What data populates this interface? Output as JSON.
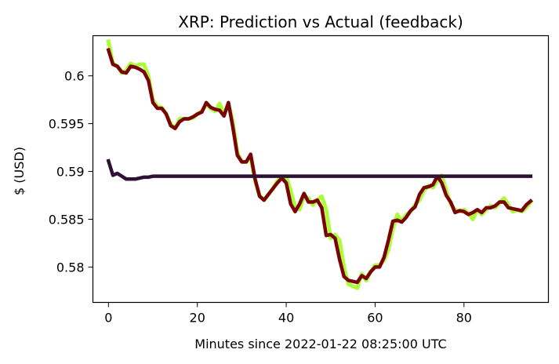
{
  "chart_data": {
    "type": "line",
    "title": "XRP: Prediction vs Actual (feedback)",
    "xlabel": "Minutes since 2022-01-22 08:25:00 UTC",
    "ylabel": "$ (USD)",
    "xlim": [
      -3.5,
      99.0
    ],
    "ylim": [
      0.5763,
      0.6042
    ],
    "xticks": [
      0,
      20,
      40,
      60,
      80
    ],
    "yticks": [
      0.58,
      0.585,
      0.59,
      0.595,
      0.6
    ],
    "ytick_labels": [
      "0.58",
      "0.585",
      "0.59",
      "0.595",
      "0.6"
    ],
    "grid": false,
    "series": [
      {
        "color": "#adfc3a",
        "width": 5,
        "x": [
          0,
          1,
          2,
          3,
          4,
          5,
          6,
          7,
          8,
          9,
          10,
          11,
          12,
          13,
          14,
          15,
          16,
          17,
          18,
          19,
          20,
          21,
          22,
          23,
          24,
          25,
          26,
          27,
          28,
          29,
          30,
          31,
          32,
          33,
          34,
          35,
          36,
          37,
          38,
          39,
          40,
          41,
          42,
          43,
          44,
          45,
          46,
          47,
          48,
          49,
          50,
          51,
          52,
          53,
          54,
          55,
          56,
          57,
          58,
          59,
          60,
          61,
          62,
          63,
          64,
          65,
          66,
          67,
          68,
          69,
          70,
          71,
          72,
          73,
          74,
          75,
          76,
          77,
          78,
          79,
          80,
          81,
          82,
          83,
          84,
          85,
          86,
          87,
          88,
          89,
          90,
          91,
          92,
          93,
          94,
          95
        ],
        "values": [
          0.6036,
          0.6013,
          0.601,
          0.6003,
          0.6006,
          0.6013,
          0.601,
          0.6012,
          0.6012,
          0.6,
          0.5975,
          0.5968,
          0.5967,
          0.596,
          0.595,
          0.5945,
          0.5955,
          0.5955,
          0.5955,
          0.5956,
          0.596,
          0.5963,
          0.597,
          0.5966,
          0.5963,
          0.5971,
          0.596,
          0.5971,
          0.5952,
          0.592,
          0.591,
          0.591,
          0.5915,
          0.589,
          0.5875,
          0.587,
          0.5876,
          0.5882,
          0.589,
          0.5893,
          0.5895,
          0.588,
          0.5863,
          0.586,
          0.5874,
          0.5872,
          0.5865,
          0.587,
          0.5874,
          0.586,
          0.583,
          0.5834,
          0.5828,
          0.58,
          0.5782,
          0.578,
          0.5778,
          0.5793,
          0.5786,
          0.5795,
          0.5802,
          0.5802,
          0.5807,
          0.5818,
          0.584,
          0.5855,
          0.5848,
          0.5855,
          0.5858,
          0.5865,
          0.587,
          0.588,
          0.5885,
          0.5883,
          0.589,
          0.5896,
          0.588,
          0.5866,
          0.586,
          0.5858,
          0.586,
          0.5856,
          0.585,
          0.586,
          0.5855,
          0.586,
          0.5864,
          0.5862,
          0.5867,
          0.5872,
          0.5865,
          0.5858,
          0.586,
          0.5858,
          0.5862,
          0.5868
        ]
      },
      {
        "color": "#7a0404",
        "width": 4.5,
        "x": [
          0,
          1,
          2,
          3,
          4,
          5,
          6,
          7,
          8,
          9,
          10,
          11,
          12,
          13,
          14,
          15,
          16,
          17,
          18,
          19,
          20,
          21,
          22,
          23,
          24,
          25,
          26,
          27,
          28,
          29,
          30,
          31,
          32,
          33,
          34,
          35,
          36,
          37,
          38,
          39,
          40,
          41,
          42,
          43,
          44,
          45,
          46,
          47,
          48,
          49,
          50,
          51,
          52,
          53,
          54,
          55,
          56,
          57,
          58,
          59,
          60,
          61,
          62,
          63,
          64,
          65,
          66,
          67,
          68,
          69,
          70,
          71,
          72,
          73,
          74,
          75,
          76,
          77,
          78,
          79,
          80,
          81,
          82,
          83,
          84,
          85,
          86,
          87,
          88,
          89,
          90,
          91,
          92,
          93,
          94,
          95
        ],
        "values": [
          0.6027,
          0.6012,
          0.601,
          0.6004,
          0.6003,
          0.601,
          0.6009,
          0.6007,
          0.6004,
          0.5995,
          0.5972,
          0.5966,
          0.5966,
          0.596,
          0.5948,
          0.5945,
          0.5952,
          0.5955,
          0.5955,
          0.5957,
          0.596,
          0.5962,
          0.5972,
          0.5967,
          0.5965,
          0.5964,
          0.5958,
          0.5972,
          0.5946,
          0.5917,
          0.591,
          0.591,
          0.5918,
          0.5892,
          0.5874,
          0.587,
          0.5876,
          0.5882,
          0.5888,
          0.5893,
          0.5888,
          0.5866,
          0.5858,
          0.5866,
          0.5877,
          0.5868,
          0.5868,
          0.587,
          0.5862,
          0.5833,
          0.5834,
          0.583,
          0.5808,
          0.579,
          0.5786,
          0.5785,
          0.5784,
          0.5791,
          0.5788,
          0.5795,
          0.58,
          0.58,
          0.581,
          0.5828,
          0.5848,
          0.5849,
          0.5847,
          0.5852,
          0.5859,
          0.5863,
          0.5876,
          0.5883,
          0.5884,
          0.5886,
          0.5895,
          0.5888,
          0.5875,
          0.5868,
          0.5857,
          0.5859,
          0.5858,
          0.5855,
          0.5857,
          0.586,
          0.5857,
          0.5862,
          0.5862,
          0.5864,
          0.5868,
          0.5868,
          0.5862,
          0.5861,
          0.586,
          0.5859,
          0.5865,
          0.5869
        ]
      },
      {
        "color": "#2d1235",
        "width": 4.5,
        "x": [
          0,
          1,
          2,
          3,
          4,
          5,
          6,
          7,
          8,
          9,
          10,
          12,
          14,
          20,
          30,
          40,
          50,
          60,
          70,
          80,
          90,
          95
        ],
        "values": [
          0.5911,
          0.5896,
          0.5898,
          0.5895,
          0.5892,
          0.5892,
          0.5892,
          0.5893,
          0.5894,
          0.5894,
          0.5895,
          0.5895,
          0.5895,
          0.5895,
          0.5895,
          0.5895,
          0.5895,
          0.5895,
          0.5895,
          0.5895,
          0.5895,
          0.5895
        ]
      }
    ]
  }
}
